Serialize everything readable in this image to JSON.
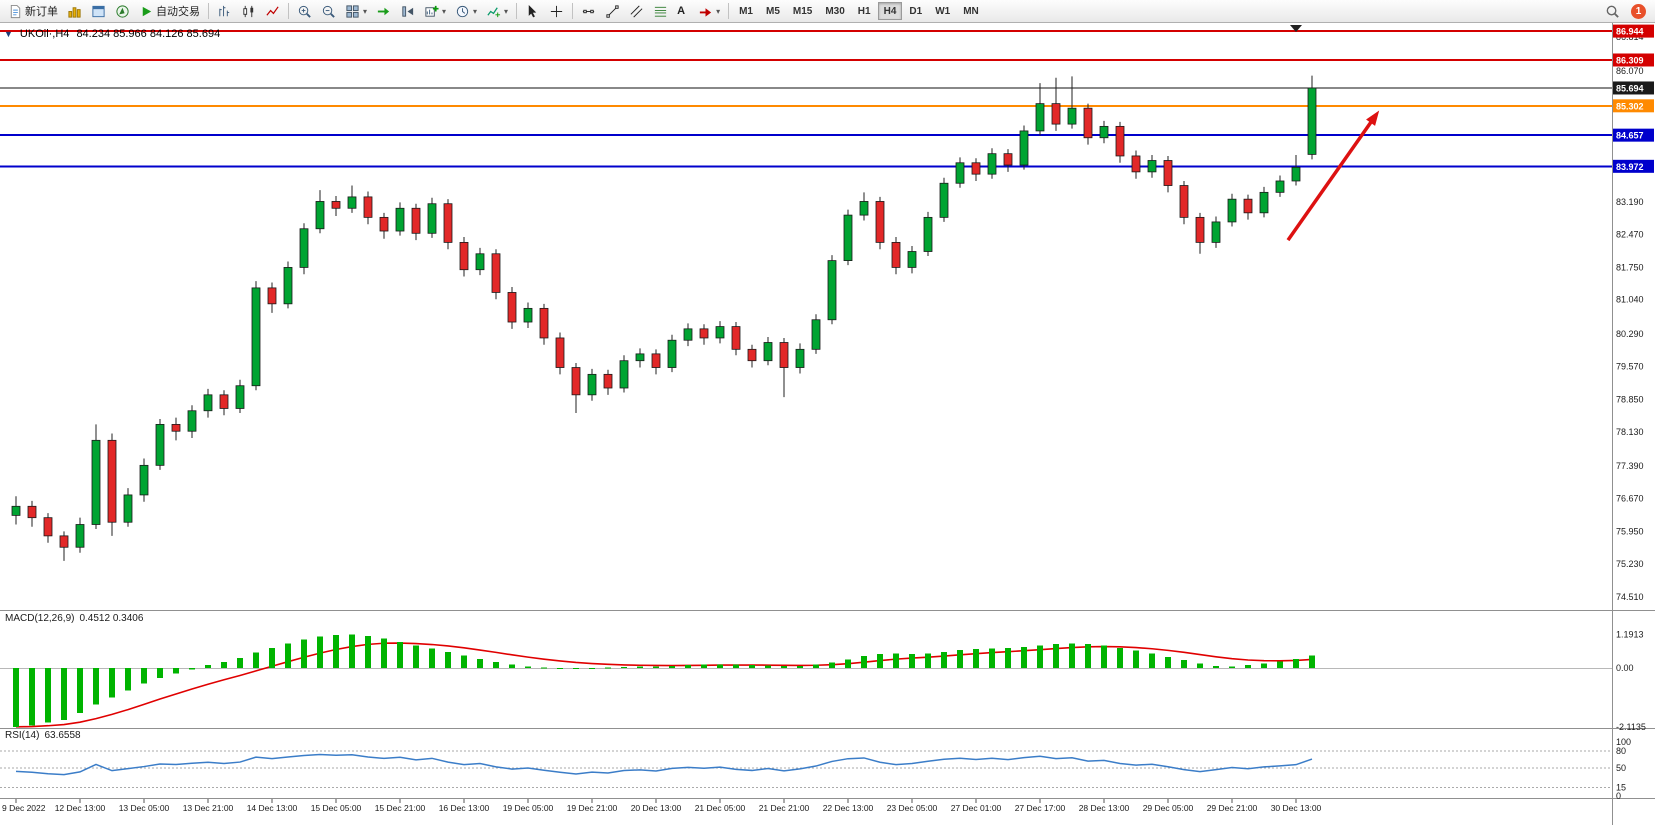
{
  "toolbar": {
    "buttons": [
      {
        "name": "new-order-button",
        "icon": "new-order",
        "label": "新订单"
      },
      {
        "name": "market-watch-button",
        "icon": "market-watch"
      },
      {
        "name": "data-window-button",
        "icon": "data-window"
      },
      {
        "name": "navigator-button",
        "icon": "navigator"
      },
      {
        "name": "autotrading-button",
        "icon": "autotrading",
        "label": "自动交易"
      },
      {
        "sep": true
      },
      {
        "name": "bar-chart-button",
        "icon": "bars"
      },
      {
        "name": "candlestick-chart-button",
        "icon": "candles"
      },
      {
        "name": "line-chart-button",
        "icon": "line"
      },
      {
        "sep": true
      },
      {
        "name": "zoom-in-button",
        "icon": "zoom-in"
      },
      {
        "name": "zoom-out-button",
        "icon": "zoom-out"
      },
      {
        "name": "tile-windows-button",
        "icon": "tile",
        "dropdown": true
      },
      {
        "name": "auto-scroll-button",
        "icon": "autoscroll"
      },
      {
        "name": "chart-shift-button",
        "icon": "shift"
      },
      {
        "name": "new-chart-button",
        "icon": "new-chart",
        "dropdown": true
      },
      {
        "name": "periods-button",
        "icon": "periods",
        "dropdown": true
      },
      {
        "name": "indicators-button",
        "icon": "indicators",
        "dropdown": true
      },
      {
        "sep": true
      },
      {
        "name": "cursor-button",
        "icon": "cursor"
      },
      {
        "name": "crosshair-button",
        "icon": "crosshair"
      },
      {
        "sep": true
      },
      {
        "name": "horizontal-line-button",
        "icon": "hline"
      },
      {
        "name": "trendline-button",
        "icon": "trendline"
      },
      {
        "name": "channel-button",
        "icon": "channel"
      },
      {
        "name": "fibonacci-button",
        "icon": "fibo"
      },
      {
        "name": "text-button",
        "icon": "text",
        "label": "A"
      },
      {
        "name": "arrows-button",
        "icon": "arrows",
        "dropdown": true
      },
      {
        "sep": true
      }
    ],
    "timeframes": [
      "M1",
      "M5",
      "M15",
      "M30",
      "H1",
      "H4",
      "D1",
      "W1",
      "MN"
    ],
    "active_timeframe": "H4",
    "notification_count": "1"
  },
  "chart": {
    "header": "UKOil·,H4",
    "ohlc": "84.234 85.966 84.126 85.694"
  },
  "indicators": {
    "macd": {
      "name": "MACD(12,26,9)",
      "values": "0.4512 0.3406"
    },
    "rsi": {
      "name": "RSI(14)",
      "value": "63.6558"
    }
  },
  "chart_data": {
    "type": "candlestick",
    "symbol": "UKOil",
    "timeframe": "H4",
    "ylim": [
      74.3,
      87.1
    ],
    "up_color": "#00a432",
    "down_color": "#e22828",
    "wick_color": "#222222",
    "candles": [
      [
        76.3,
        76.72,
        76.1,
        76.5
      ],
      [
        76.5,
        76.62,
        76.05,
        76.25
      ],
      [
        76.25,
        76.35,
        75.7,
        75.85
      ],
      [
        75.85,
        75.95,
        75.3,
        75.6
      ],
      [
        75.6,
        76.25,
        75.48,
        76.1
      ],
      [
        76.1,
        78.3,
        76.0,
        77.95
      ],
      [
        77.95,
        78.1,
        75.85,
        76.15
      ],
      [
        76.15,
        76.9,
        76.05,
        76.75
      ],
      [
        76.75,
        77.55,
        76.6,
        77.4
      ],
      [
        77.4,
        78.42,
        77.3,
        78.3
      ],
      [
        78.3,
        78.45,
        77.95,
        78.15
      ],
      [
        78.15,
        78.72,
        78.0,
        78.6
      ],
      [
        78.6,
        79.08,
        78.45,
        78.95
      ],
      [
        78.95,
        79.05,
        78.5,
        78.65
      ],
      [
        78.65,
        79.28,
        78.55,
        79.15
      ],
      [
        79.15,
        81.45,
        79.05,
        81.3
      ],
      [
        81.3,
        81.42,
        80.75,
        80.95
      ],
      [
        80.95,
        81.88,
        80.85,
        81.75
      ],
      [
        81.75,
        82.72,
        81.6,
        82.6
      ],
      [
        82.6,
        83.45,
        82.5,
        83.2
      ],
      [
        83.2,
        83.32,
        82.88,
        83.05
      ],
      [
        83.05,
        83.55,
        82.95,
        83.3
      ],
      [
        83.3,
        83.42,
        82.7,
        82.85
      ],
      [
        82.85,
        82.95,
        82.38,
        82.55
      ],
      [
        82.55,
        83.18,
        82.45,
        83.05
      ],
      [
        83.05,
        83.15,
        82.35,
        82.5
      ],
      [
        82.5,
        83.28,
        82.4,
        83.15
      ],
      [
        83.15,
        83.25,
        82.15,
        82.3
      ],
      [
        82.3,
        82.42,
        81.55,
        81.7
      ],
      [
        81.7,
        82.18,
        81.58,
        82.05
      ],
      [
        82.05,
        82.15,
        81.05,
        81.2
      ],
      [
        81.2,
        81.32,
        80.4,
        80.55
      ],
      [
        80.55,
        80.98,
        80.42,
        80.85
      ],
      [
        80.85,
        80.95,
        80.05,
        80.2
      ],
      [
        80.2,
        80.32,
        79.4,
        79.55
      ],
      [
        79.55,
        79.65,
        78.55,
        78.95
      ],
      [
        78.95,
        79.52,
        78.82,
        79.4
      ],
      [
        79.4,
        79.5,
        78.95,
        79.1
      ],
      [
        79.1,
        79.82,
        79.0,
        79.7
      ],
      [
        79.7,
        79.97,
        79.55,
        79.85
      ],
      [
        79.85,
        79.95,
        79.4,
        79.55
      ],
      [
        79.55,
        80.27,
        79.45,
        80.15
      ],
      [
        80.15,
        80.52,
        80.02,
        80.4
      ],
      [
        80.4,
        80.5,
        80.05,
        80.2
      ],
      [
        80.2,
        80.57,
        80.08,
        80.45
      ],
      [
        80.45,
        80.55,
        79.82,
        79.95
      ],
      [
        79.95,
        80.05,
        79.55,
        79.7
      ],
      [
        79.7,
        80.22,
        79.6,
        80.1
      ],
      [
        80.1,
        80.2,
        78.9,
        79.55
      ],
      [
        79.55,
        80.08,
        79.42,
        79.95
      ],
      [
        79.95,
        80.72,
        79.85,
        80.6
      ],
      [
        80.6,
        82.02,
        80.5,
        81.9
      ],
      [
        81.9,
        83.02,
        81.8,
        82.9
      ],
      [
        82.9,
        83.4,
        82.78,
        83.2
      ],
      [
        83.2,
        83.3,
        82.15,
        82.3
      ],
      [
        82.3,
        82.42,
        81.6,
        81.75
      ],
      [
        81.75,
        82.22,
        81.62,
        82.1
      ],
      [
        82.1,
        82.97,
        82.0,
        82.85
      ],
      [
        82.85,
        83.72,
        82.75,
        83.6
      ],
      [
        83.6,
        84.17,
        83.5,
        84.05
      ],
      [
        84.05,
        84.15,
        83.65,
        83.8
      ],
      [
        83.8,
        84.37,
        83.7,
        84.25
      ],
      [
        84.25,
        84.35,
        83.85,
        84.0
      ],
      [
        84.0,
        84.87,
        83.9,
        84.75
      ],
      [
        84.75,
        85.8,
        84.65,
        85.35
      ],
      [
        85.35,
        85.92,
        84.75,
        84.9
      ],
      [
        84.9,
        85.95,
        84.8,
        85.25
      ],
      [
        85.25,
        85.35,
        84.45,
        84.6
      ],
      [
        84.6,
        84.97,
        84.48,
        84.85
      ],
      [
        84.85,
        84.95,
        84.05,
        84.2
      ],
      [
        84.2,
        84.32,
        83.7,
        83.85
      ],
      [
        83.85,
        84.22,
        83.72,
        84.1
      ],
      [
        84.1,
        84.2,
        83.4,
        83.55
      ],
      [
        83.55,
        83.65,
        82.7,
        82.85
      ],
      [
        82.85,
        82.95,
        82.05,
        82.3
      ],
      [
        82.3,
        82.87,
        82.18,
        82.75
      ],
      [
        82.75,
        83.37,
        82.65,
        83.25
      ],
      [
        83.25,
        83.35,
        82.8,
        82.95
      ],
      [
        82.95,
        83.52,
        82.85,
        83.4
      ],
      [
        83.4,
        83.77,
        83.3,
        83.65
      ],
      [
        83.65,
        84.22,
        83.55,
        83.95
      ],
      [
        84.234,
        85.966,
        84.126,
        85.694
      ]
    ],
    "hlines": [
      {
        "value": 86.944,
        "color": "#d40000",
        "width": 2
      },
      {
        "value": 86.309,
        "color": "#d40000",
        "width": 2
      },
      {
        "value": 85.694,
        "color": "#111111",
        "width": 1
      },
      {
        "value": 85.302,
        "color": "#ff8a00",
        "width": 2
      },
      {
        "value": 84.657,
        "color": "#0000cc",
        "width": 2
      },
      {
        "value": 83.972,
        "color": "#0000cc",
        "width": 2
      }
    ],
    "price_tags": [
      {
        "value": 86.944,
        "color": "#d40000"
      },
      {
        "value": 86.309,
        "color": "#d40000"
      },
      {
        "value": 85.694,
        "color": "#1a1a1a"
      },
      {
        "value": 85.302,
        "color": "#ff8a00"
      },
      {
        "value": 84.657,
        "color": "#0000cc"
      },
      {
        "value": 83.972,
        "color": "#0000cc"
      }
    ],
    "price_axis_labels": [
      86.814,
      86.07,
      83.19,
      82.47,
      81.75,
      81.04,
      80.29,
      79.57,
      78.85,
      78.13,
      77.39,
      76.67,
      75.95,
      75.23,
      74.51
    ],
    "time_labels": [
      "9 Dec 2022",
      "12 Dec 13:00",
      "13 Dec 05:00",
      "13 Dec 21:00",
      "14 Dec 13:00",
      "15 Dec 05:00",
      "15 Dec 21:00",
      "16 Dec 13:00",
      "19 Dec 05:00",
      "19 Dec 21:00",
      "20 Dec 13:00",
      "21 Dec 05:00",
      "21 Dec 21:00",
      "22 Dec 13:00",
      "23 Dec 05:00",
      "27 Dec 01:00",
      "27 Dec 17:00",
      "28 Dec 13:00",
      "29 Dec 05:00",
      "29 Dec 21:00",
      "30 Dec 13:00"
    ],
    "macd": {
      "histogram_color": "#00b400",
      "signal_color": "#e00000",
      "signal_period": 9,
      "values": [
        -2.1,
        -2.05,
        -1.95,
        -1.85,
        -1.6,
        -1.3,
        -1.05,
        -0.8,
        -0.55,
        -0.35,
        -0.2,
        -0.05,
        0.1,
        0.22,
        0.35,
        0.55,
        0.72,
        0.88,
        1.02,
        1.12,
        1.18,
        1.19,
        1.15,
        1.05,
        0.92,
        0.8,
        0.7,
        0.58,
        0.45,
        0.33,
        0.22,
        0.12,
        0.06,
        0.02,
        0.0,
        -0.02,
        0.0,
        0.02,
        0.03,
        0.05,
        0.06,
        0.08,
        0.1,
        0.12,
        0.13,
        0.12,
        0.1,
        0.09,
        0.07,
        0.08,
        0.12,
        0.2,
        0.3,
        0.42,
        0.5,
        0.52,
        0.5,
        0.52,
        0.58,
        0.65,
        0.68,
        0.7,
        0.72,
        0.75,
        0.8,
        0.85,
        0.88,
        0.86,
        0.8,
        0.72,
        0.62,
        0.52,
        0.4,
        0.28,
        0.16,
        0.08,
        0.06,
        0.1,
        0.16,
        0.24,
        0.32,
        0.4512
      ],
      "scale": [
        {
          "v": 1.1913,
          "t": "1.1913"
        },
        {
          "v": 0,
          "t": "0.00"
        },
        {
          "v": -2.1135,
          "t": "-2.1135"
        }
      ]
    },
    "rsi": {
      "period": 14,
      "line_color": "#3b7dc8",
      "levels": [
        80,
        50,
        15
      ],
      "scale": [
        {
          "v": 100,
          "t": "100"
        },
        {
          "v": 80,
          "t": "80"
        },
        {
          "v": 50,
          "t": "50"
        },
        {
          "v": 15,
          "t": "15"
        },
        {
          "v": 0,
          "t": "0"
        }
      ]
    },
    "arrow": {
      "from": {
        "index": 79.5,
        "price": 82.35
      },
      "to": {
        "index": 85.2,
        "price": 85.2
      },
      "color": "#dd1111"
    }
  }
}
